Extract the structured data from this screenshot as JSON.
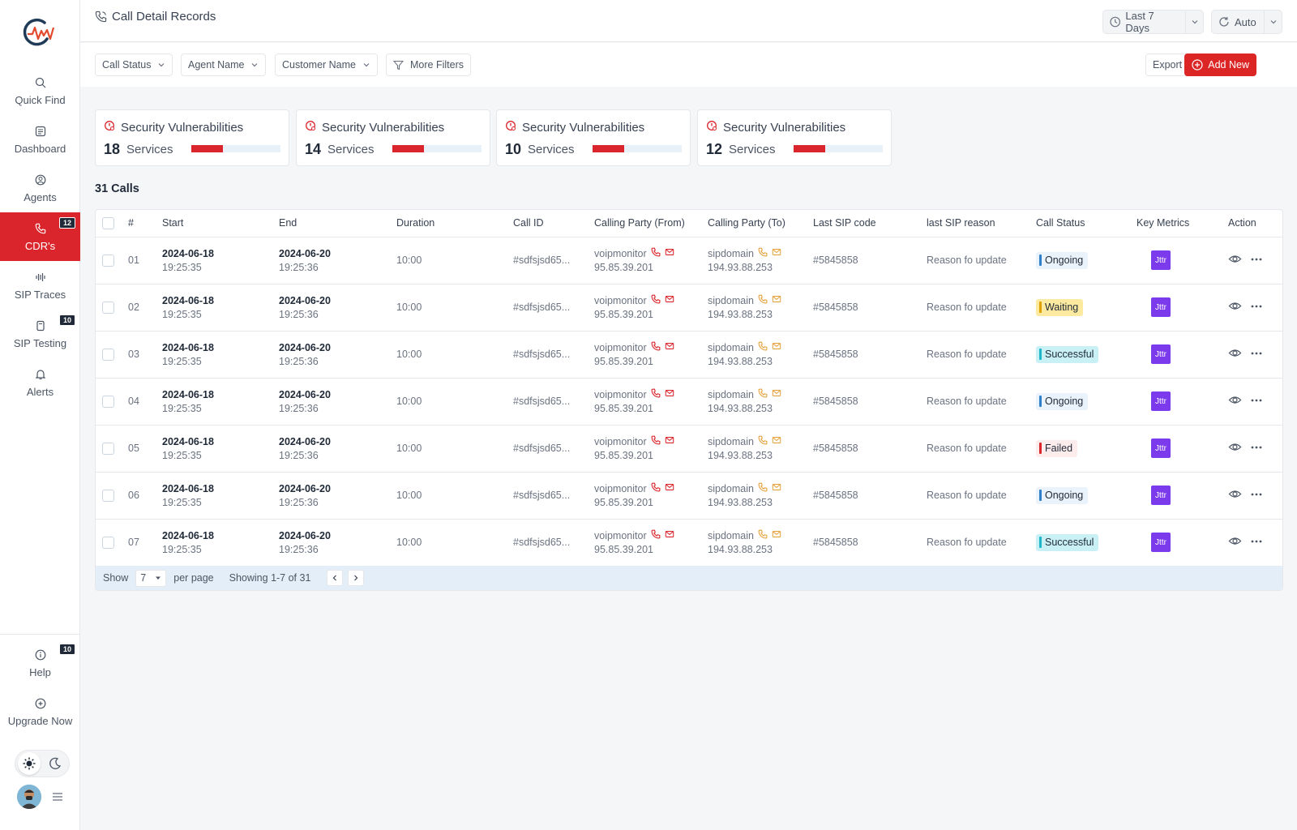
{
  "header": {
    "title": "Call Detail Records",
    "date_range": "Last 7 Days",
    "refresh": "Auto"
  },
  "sidebar": {
    "items": [
      {
        "label": "Quick Find",
        "icon": "search-icon"
      },
      {
        "label": "Dashboard",
        "icon": "dashboard-icon"
      },
      {
        "label": "Agents",
        "icon": "agents-icon"
      },
      {
        "label": "CDR's",
        "icon": "phone-icon",
        "badge": "12"
      },
      {
        "label": "SIP Traces",
        "icon": "waveform-icon"
      },
      {
        "label": "SIP Testing",
        "icon": "test-icon",
        "badge": "10"
      },
      {
        "label": "Alerts",
        "icon": "bell-icon"
      }
    ],
    "bottom": [
      {
        "label": "Help",
        "icon": "help-icon",
        "badge": "10"
      },
      {
        "label": "Upgrade Now",
        "icon": "upgrade-icon"
      }
    ]
  },
  "filters": {
    "call_status": "Call Status",
    "agent_name": "Agent Name",
    "customer_name": "Customer Name",
    "more_filters": "More Filters",
    "export": "Export",
    "add_new": "Add New"
  },
  "cards": [
    {
      "title": "Security Vulnerabilities",
      "value": "18",
      "unit": "Services",
      "fill_fraction": 0.35
    },
    {
      "title": "Security Vulnerabilities",
      "value": "14",
      "unit": "Services",
      "fill_fraction": 0.35
    },
    {
      "title": "Security Vulnerabilities",
      "value": "10",
      "unit": "Services",
      "fill_fraction": 0.35
    },
    {
      "title": "Security Vulnerabilities",
      "value": "12",
      "unit": "Services",
      "fill_fraction": 0.35
    }
  ],
  "table": {
    "count_label": "31 Calls",
    "columns": [
      "#",
      "Start",
      "End",
      "Duration",
      "Call ID",
      "Calling Party (From)",
      "Calling Party (To)",
      "Last SIP code",
      "last SIP reason",
      "Call Status",
      "Key Metrics",
      "Action"
    ],
    "rows": [
      {
        "num": "01",
        "start_date": "2024-06-18",
        "start_time": "19:25:35",
        "end_date": "2024-06-20",
        "end_time": "19:25:36",
        "duration": "10:00",
        "call_id": "#sdfsjsd65...",
        "from_name": "voipmonitor",
        "from_ip": "95.85.39.201",
        "to_name": "sipdomain",
        "to_ip": "194.93.88.253",
        "sip_code": "#5845858",
        "sip_reason": "Reason fo update",
        "status": "Ongoing",
        "metric": "Jttr"
      },
      {
        "num": "02",
        "start_date": "2024-06-18",
        "start_time": "19:25:35",
        "end_date": "2024-06-20",
        "end_time": "19:25:36",
        "duration": "10:00",
        "call_id": "#sdfsjsd65...",
        "from_name": "voipmonitor",
        "from_ip": "95.85.39.201",
        "to_name": "sipdomain",
        "to_ip": "194.93.88.253",
        "sip_code": "#5845858",
        "sip_reason": "Reason fo update",
        "status": "Waiting",
        "metric": "Jttr"
      },
      {
        "num": "03",
        "start_date": "2024-06-18",
        "start_time": "19:25:35",
        "end_date": "2024-06-20",
        "end_time": "19:25:36",
        "duration": "10:00",
        "call_id": "#sdfsjsd65...",
        "from_name": "voipmonitor",
        "from_ip": "95.85.39.201",
        "to_name": "sipdomain",
        "to_ip": "194.93.88.253",
        "sip_code": "#5845858",
        "sip_reason": "Reason fo update",
        "status": "Successful",
        "metric": "Jttr"
      },
      {
        "num": "04",
        "start_date": "2024-06-18",
        "start_time": "19:25:35",
        "end_date": "2024-06-20",
        "end_time": "19:25:36",
        "duration": "10:00",
        "call_id": "#sdfsjsd65...",
        "from_name": "voipmonitor",
        "from_ip": "95.85.39.201",
        "to_name": "sipdomain",
        "to_ip": "194.93.88.253",
        "sip_code": "#5845858",
        "sip_reason": "Reason fo update",
        "status": "Ongoing",
        "metric": "Jttr"
      },
      {
        "num": "05",
        "start_date": "2024-06-18",
        "start_time": "19:25:35",
        "end_date": "2024-06-20",
        "end_time": "19:25:36",
        "duration": "10:00",
        "call_id": "#sdfsjsd65...",
        "from_name": "voipmonitor",
        "from_ip": "95.85.39.201",
        "to_name": "sipdomain",
        "to_ip": "194.93.88.253",
        "sip_code": "#5845858",
        "sip_reason": "Reason fo update",
        "status": "Failed",
        "metric": "Jttr"
      },
      {
        "num": "06",
        "start_date": "2024-06-18",
        "start_time": "19:25:35",
        "end_date": "2024-06-20",
        "end_time": "19:25:36",
        "duration": "10:00",
        "call_id": "#sdfsjsd65...",
        "from_name": "voipmonitor",
        "from_ip": "95.85.39.201",
        "to_name": "sipdomain",
        "to_ip": "194.93.88.253",
        "sip_code": "#5845858",
        "sip_reason": "Reason fo update",
        "status": "Ongoing",
        "metric": "Jttr"
      },
      {
        "num": "07",
        "start_date": "2024-06-18",
        "start_time": "19:25:35",
        "end_date": "2024-06-20",
        "end_time": "19:25:36",
        "duration": "10:00",
        "call_id": "#sdfsjsd65...",
        "from_name": "voipmonitor",
        "from_ip": "95.85.39.201",
        "to_name": "sipdomain",
        "to_ip": "194.93.88.253",
        "sip_code": "#5845858",
        "sip_reason": "Reason fo update",
        "status": "Successful",
        "metric": "Jttr"
      }
    ],
    "footer": {
      "show_label": "Show",
      "page_size": "7",
      "per_page_label": "per page",
      "showing": "Showing 1-7 of 31"
    }
  },
  "colors": {
    "brand_red": "#d9252b",
    "status": {
      "Ongoing": {
        "bar": "#2f80c8",
        "bg": "#eaf2fb"
      },
      "Waiting": {
        "bar": "#e0a100",
        "bg": "#fbeaa0"
      },
      "Successful": {
        "bar": "#1fb6c9",
        "bg": "#c9f1f5"
      },
      "Failed": {
        "bar": "#d9252b",
        "bg": "#fdecec"
      }
    },
    "metric": "#7c3aed"
  }
}
